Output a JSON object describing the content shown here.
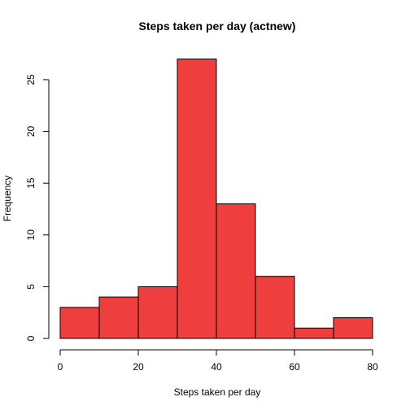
{
  "chart_data": {
    "type": "bar",
    "title": "Steps taken per day (actnew)",
    "xlabel": "Steps taken per day",
    "ylabel": "Frequency",
    "bins": [
      [
        0,
        10
      ],
      [
        10,
        20
      ],
      [
        20,
        30
      ],
      [
        30,
        40
      ],
      [
        40,
        50
      ],
      [
        50,
        60
      ],
      [
        60,
        70
      ],
      [
        70,
        80
      ]
    ],
    "values": [
      3,
      4,
      5,
      27,
      13,
      6,
      1,
      2
    ],
    "xlim": [
      0,
      80
    ],
    "ylim": [
      0,
      27
    ],
    "xticks": [
      0,
      20,
      40,
      60,
      80
    ],
    "yticks": [
      0,
      5,
      10,
      15,
      20,
      25
    ],
    "bar_color": "#ef3e3e",
    "grid": false
  }
}
